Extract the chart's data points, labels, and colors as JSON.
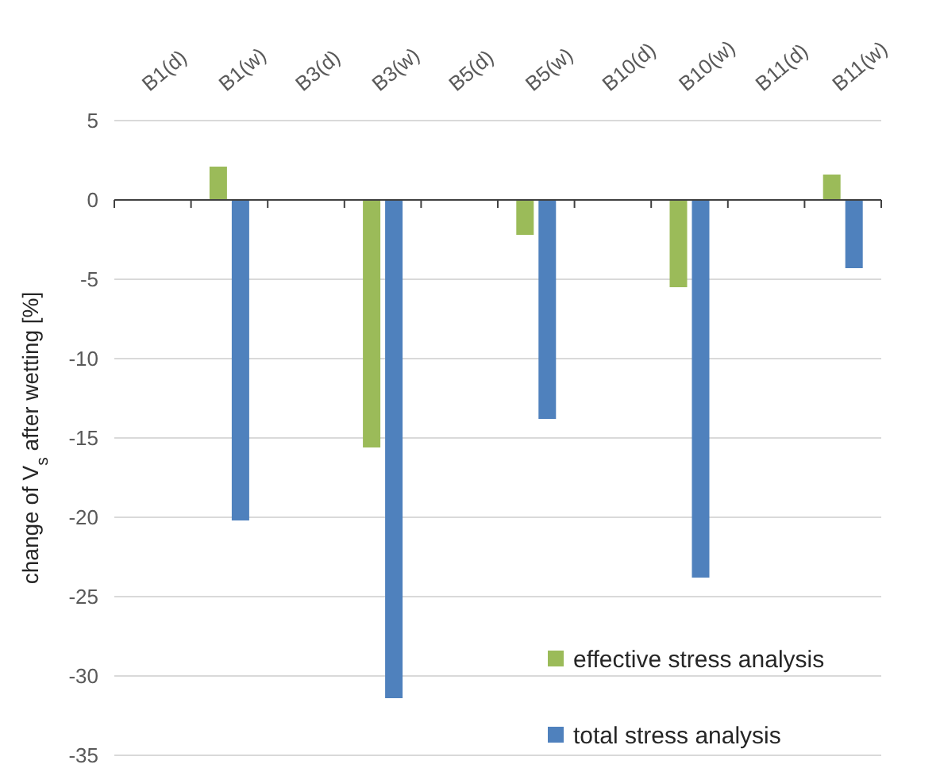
{
  "chart_data": {
    "type": "bar",
    "categories": [
      "B1(d)",
      "B1(w)",
      "B3(d)",
      "B3(w)",
      "B5(d)",
      "B5(w)",
      "B10(d)",
      "B10(w)",
      "B11(d)",
      "B11(w)"
    ],
    "series": [
      {
        "name": "effective stress analysis",
        "color": "#9bbb59",
        "values": [
          null,
          2.1,
          null,
          -15.6,
          null,
          -2.2,
          null,
          -5.5,
          null,
          1.6
        ]
      },
      {
        "name": "total stress analysis",
        "color": "#4f81bd",
        "values": [
          null,
          -20.2,
          null,
          -31.4,
          null,
          -13.8,
          null,
          -23.8,
          null,
          -4.3
        ]
      }
    ],
    "ylabel": "change of V$_{s}$ after wetting [%]",
    "ylim": [
      -35,
      5
    ],
    "yticks": [
      -35,
      -30,
      -25,
      -20,
      -15,
      -10,
      -5,
      0,
      5
    ],
    "grid": "y",
    "legend": "bottom right"
  }
}
